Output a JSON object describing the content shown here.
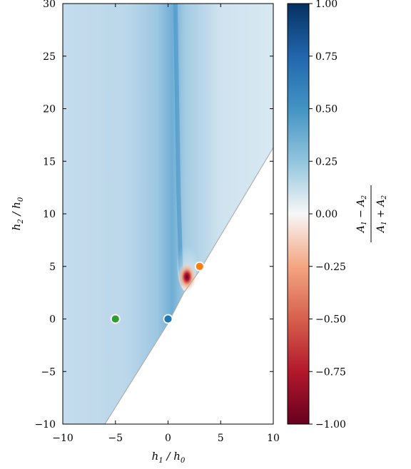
{
  "chart_data": {
    "type": "heatmap",
    "xlabel": "h1 / h0",
    "ylabel": "h2 / h0",
    "xlim": [
      -10,
      10
    ],
    "ylim": [
      -10,
      30
    ],
    "xticks": [
      -10,
      -5,
      0,
      5,
      10
    ],
    "yticks": [
      -10,
      -5,
      0,
      5,
      10,
      15,
      20,
      25,
      30
    ],
    "valid_region_boundary": [
      [
        -6,
        -10
      ],
      [
        0,
        -0.4
      ],
      [
        1.5,
        2.5
      ],
      [
        3,
        4.6
      ],
      [
        10,
        16.3
      ]
    ],
    "ridge_line": [
      [
        0.7,
        30
      ],
      [
        1.0,
        12
      ],
      [
        1.2,
        5
      ],
      [
        1.4,
        3.2
      ]
    ],
    "negative_peak": {
      "x": 1.4,
      "y": 3.4,
      "value": -1.0
    },
    "colorbar": {
      "label": "(A1 − A2) / (A1 + A2)",
      "range": [
        -1.0,
        1.0
      ],
      "ticks": [
        "1.00",
        "0.75",
        "0.50",
        "0.25",
        "0.00",
        "−0.25",
        "−0.50",
        "−0.75",
        "−1.00"
      ],
      "colormap": "RdBu"
    },
    "markers": [
      {
        "x": 0,
        "y": 0,
        "color": "#1f77b4"
      },
      {
        "x": 3,
        "y": 5,
        "color": "#ff7f0e"
      },
      {
        "x": -5,
        "y": 0,
        "color": "#2ca02c"
      }
    ]
  }
}
